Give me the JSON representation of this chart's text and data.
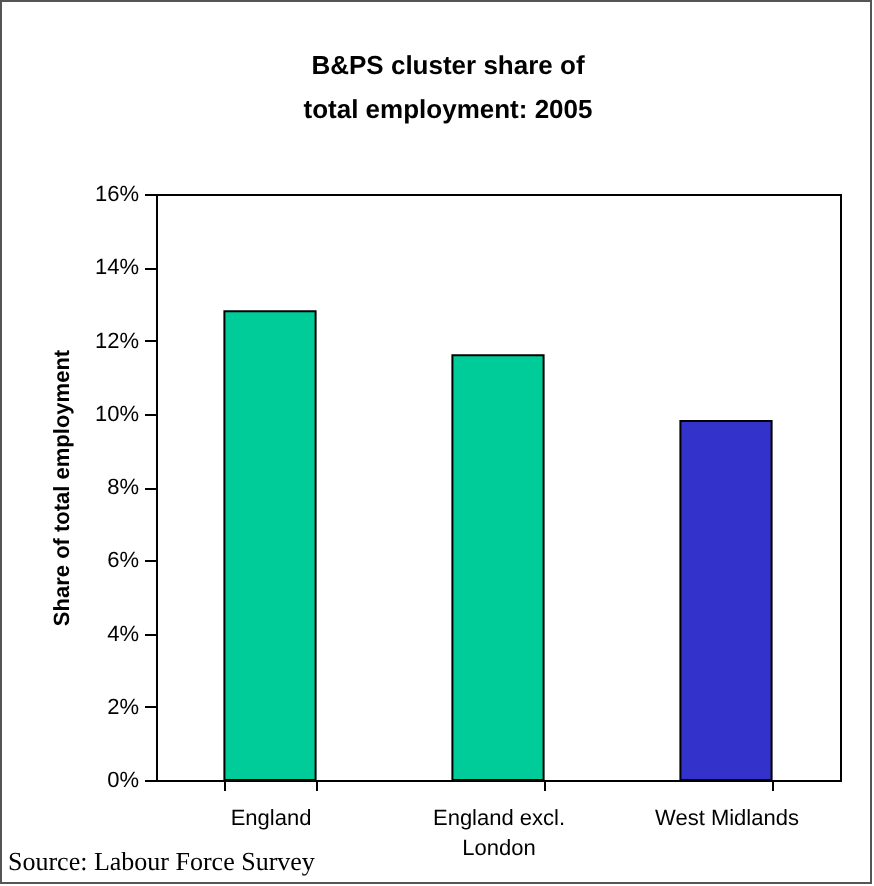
{
  "chart_data": {
    "type": "bar",
    "title": "B&PS cluster share of\ntotal employment: 2005",
    "ylabel": "Share of total employment",
    "categories": [
      "England",
      "England excl. London",
      "West Midlands"
    ],
    "values": [
      12.8,
      11.6,
      9.8
    ],
    "colors": [
      "#00cc99",
      "#00cc99",
      "#3333cc"
    ],
    "ylim": [
      0,
      16
    ],
    "yticks": [
      {
        "value": 0,
        "label": "0%"
      },
      {
        "value": 2,
        "label": "2%"
      },
      {
        "value": 4,
        "label": "4%"
      },
      {
        "value": 6,
        "label": "6%"
      },
      {
        "value": 8,
        "label": "8%"
      },
      {
        "value": 10,
        "label": "10%"
      },
      {
        "value": 12,
        "label": "12%"
      },
      {
        "value": 14,
        "label": "14%"
      },
      {
        "value": 16,
        "label": "16%"
      }
    ],
    "annotations": [
      "Source: Labour Force Survey"
    ]
  }
}
